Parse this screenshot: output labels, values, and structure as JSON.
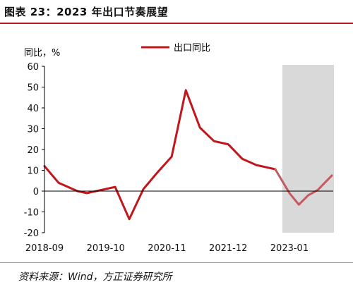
{
  "figure": {
    "title": "图表 23：2023 年出口节奏展望",
    "source": "资料来源：Wind，方正证券研究所"
  },
  "chart_data": {
    "type": "line",
    "ylabel": "同比，%",
    "ylim": [
      -20,
      60
    ],
    "yticks": [
      -20,
      -10,
      0,
      10,
      20,
      30,
      40,
      50,
      60
    ],
    "x_tick_labels": [
      "2018-09",
      "2019-10",
      "2020-11",
      "2021-12",
      "2023-01"
    ],
    "x_tick_index": [
      0,
      13,
      26,
      39,
      52
    ],
    "legend_position": "top-center",
    "shaded_region": {
      "from_index": 50.5,
      "to_index": 61
    },
    "series": [
      {
        "name": "出口同比",
        "color": "#c0161c",
        "values": [
          12,
          4,
          0,
          -1,
          2,
          -13.5,
          1,
          9,
          16.5,
          48.5,
          30.5,
          24,
          22.5,
          15.5,
          12.5,
          10.5
        ],
        "index": [
          0,
          3,
          7,
          9,
          15,
          18,
          21,
          24,
          27,
          30,
          33,
          36,
          39,
          42,
          45,
          49
        ]
      },
      {
        "name": "",
        "color": "#c45a5d",
        "values": [
          10.5,
          -1,
          -6.5,
          -2,
          0.5,
          7.5
        ],
        "index": [
          49,
          52,
          54,
          56,
          58,
          61
        ]
      }
    ]
  },
  "colors": {
    "accent": "#b81b1b",
    "shade": "#d9d9d9",
    "axis": "#000000"
  }
}
